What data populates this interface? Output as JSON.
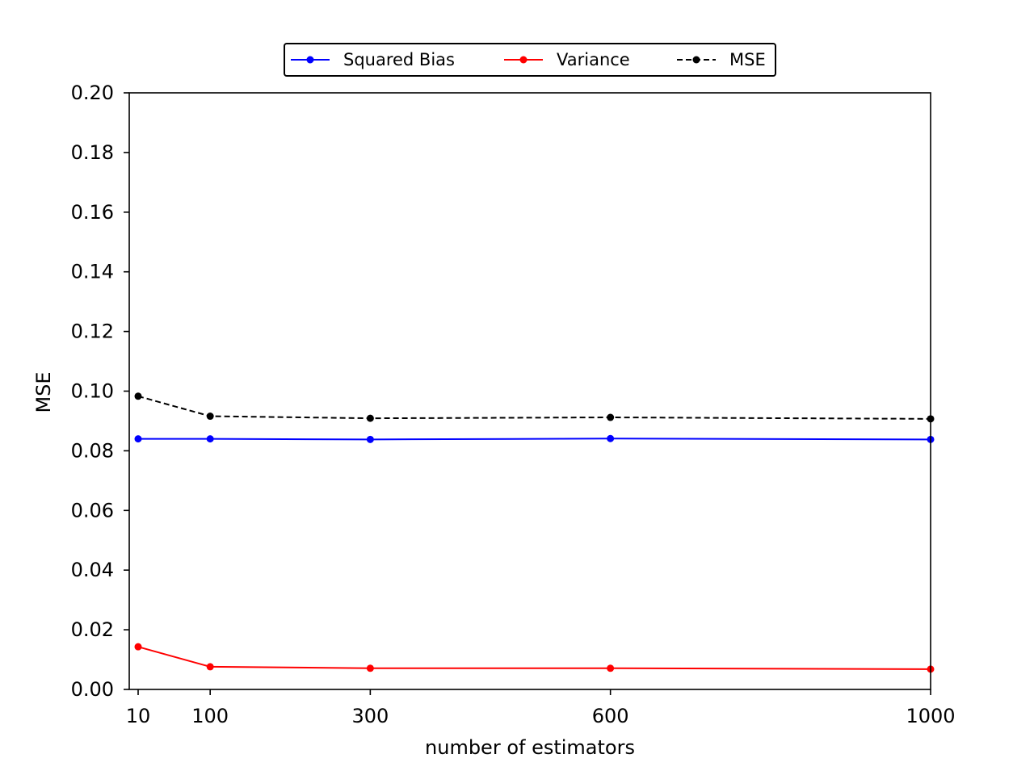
{
  "chart_data": {
    "type": "line",
    "title": "",
    "xlabel": "number of estimators",
    "ylabel": "MSE",
    "x": [
      10,
      100,
      300,
      600,
      1000
    ],
    "xlim": [
      10,
      1000
    ],
    "ylim": [
      0.0,
      0.2
    ],
    "xticks": [
      10,
      100,
      300,
      600,
      1000
    ],
    "xtick_labels": [
      "10",
      "100",
      "300",
      "600",
      "1000"
    ],
    "yticks": [
      0.0,
      0.02,
      0.04,
      0.06,
      0.08,
      0.1,
      0.12,
      0.14,
      0.16,
      0.18,
      0.2
    ],
    "ytick_labels": [
      "0.00",
      "0.02",
      "0.04",
      "0.06",
      "0.08",
      "0.10",
      "0.12",
      "0.14",
      "0.16",
      "0.18",
      "0.20"
    ],
    "grid": false,
    "legend_position": "top-center",
    "series": [
      {
        "name": "Squared Bias",
        "color": "#0000ff",
        "dashed": false,
        "values": [
          0.084,
          0.084,
          0.0838,
          0.0841,
          0.0838
        ]
      },
      {
        "name": "Variance",
        "color": "#ff0000",
        "dashed": false,
        "values": [
          0.0143,
          0.0076,
          0.0071,
          0.0071,
          0.0068
        ]
      },
      {
        "name": "MSE",
        "color": "#000000",
        "dashed": true,
        "values": [
          0.0983,
          0.0916,
          0.0909,
          0.0912,
          0.0907
        ]
      }
    ]
  }
}
